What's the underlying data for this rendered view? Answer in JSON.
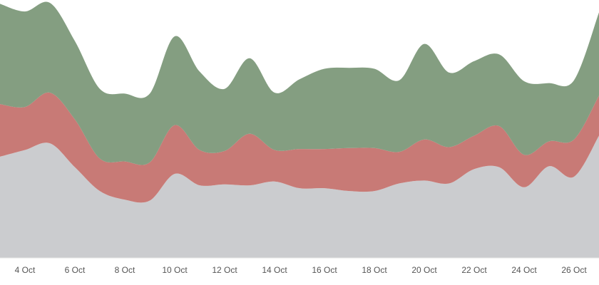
{
  "chart_data": {
    "type": "area",
    "stacked": true,
    "title": "",
    "xlabel": "",
    "ylabel": "",
    "grid": false,
    "legend": "none",
    "xlim": [
      "2024-10-03",
      "2024-10-27"
    ],
    "ylim": [
      0,
      270
    ],
    "x": [
      "2024-10-03",
      "2024-10-04",
      "2024-10-05",
      "2024-10-06",
      "2024-10-07",
      "2024-10-08",
      "2024-10-09",
      "2024-10-10",
      "2024-10-11",
      "2024-10-12",
      "2024-10-13",
      "2024-10-14",
      "2024-10-15",
      "2024-10-16",
      "2024-10-17",
      "2024-10-18",
      "2024-10-19",
      "2024-10-20",
      "2024-10-21",
      "2024-10-22",
      "2024-10-23",
      "2024-10-24",
      "2024-10-25",
      "2024-10-26",
      "2024-10-27"
    ],
    "x_ticks": [
      {
        "value": "2024-10-04",
        "label": "4 Oct"
      },
      {
        "value": "2024-10-06",
        "label": "6 Oct"
      },
      {
        "value": "2024-10-08",
        "label": "8 Oct"
      },
      {
        "value": "2024-10-10",
        "label": "10 Oct"
      },
      {
        "value": "2024-10-12",
        "label": "12 Oct"
      },
      {
        "value": "2024-10-14",
        "label": "14 Oct"
      },
      {
        "value": "2024-10-16",
        "label": "16 Oct"
      },
      {
        "value": "2024-10-18",
        "label": "18 Oct"
      },
      {
        "value": "2024-10-20",
        "label": "20 Oct"
      },
      {
        "value": "2024-10-22",
        "label": "22 Oct"
      },
      {
        "value": "2024-10-24",
        "label": "24 Oct"
      },
      {
        "value": "2024-10-26",
        "label": "26 Oct"
      }
    ],
    "series": [
      {
        "color": "#cbcccf",
        "values": [
          106,
          113,
          120,
          95,
          70,
          61,
          60,
          88,
          76,
          77,
          76,
          80,
          73,
          73,
          70,
          70,
          78,
          81,
          78,
          93,
          95,
          74,
          96,
          85,
          128
        ]
      },
      {
        "color": "#c87a76",
        "values": [
          55,
          45,
          53,
          50,
          34,
          40,
          40,
          51,
          37,
          35,
          54,
          33,
          41,
          41,
          45,
          45,
          33,
          43,
          38,
          35,
          43,
          34,
          26,
          39,
          42
        ]
      },
      {
        "color": "#849e81",
        "values": [
          105,
          100,
          94,
          82,
          73,
          71,
          72,
          93,
          82,
          65,
          79,
          60,
          73,
          84,
          84,
          83,
          75,
          100,
          78,
          78,
          75,
          77,
          61,
          62,
          87
        ]
      }
    ]
  }
}
